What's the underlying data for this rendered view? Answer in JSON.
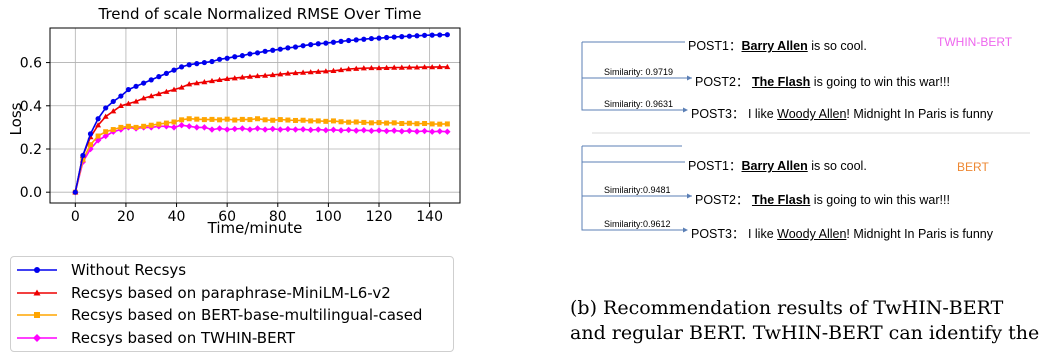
{
  "chart_data": {
    "type": "line",
    "title": "Trend of scale Normalized RMSE Over Time",
    "xlabel": "Time/minute",
    "ylabel": "Loss",
    "xlim": [
      -10,
      152
    ],
    "ylim": [
      -0.05,
      0.76
    ],
    "xticks": [
      0,
      20,
      40,
      60,
      80,
      100,
      120,
      140
    ],
    "yticks": [
      0.0,
      0.2,
      0.4,
      0.6
    ],
    "ytick_labels": [
      "0.0",
      "0.2",
      "0.4",
      "0.6"
    ],
    "grid": true,
    "legend_placement": "below",
    "series": [
      {
        "name": "Without Recsys",
        "color": "#0000ee",
        "marker": "circle",
        "x": [
          0,
          3,
          6,
          9,
          12,
          15,
          18,
          21,
          24,
          27,
          30,
          33,
          36,
          39,
          42,
          45,
          48,
          51,
          54,
          57,
          60,
          63,
          66,
          69,
          72,
          75,
          78,
          81,
          84,
          87,
          90,
          93,
          96,
          99,
          102,
          105,
          108,
          111,
          114,
          117,
          120,
          123,
          126,
          129,
          132,
          135,
          138,
          141,
          144,
          147
        ],
        "y": [
          0.0,
          0.17,
          0.27,
          0.34,
          0.39,
          0.42,
          0.445,
          0.475,
          0.49,
          0.505,
          0.52,
          0.535,
          0.55,
          0.565,
          0.58,
          0.59,
          0.595,
          0.6,
          0.605,
          0.615,
          0.62,
          0.627,
          0.632,
          0.64,
          0.645,
          0.652,
          0.657,
          0.662,
          0.668,
          0.672,
          0.678,
          0.683,
          0.687,
          0.69,
          0.694,
          0.698,
          0.702,
          0.705,
          0.708,
          0.711,
          0.713,
          0.716,
          0.718,
          0.72,
          0.722,
          0.724,
          0.726,
          0.727,
          0.728,
          0.729
        ]
      },
      {
        "name": "Recsys based on paraphrase-MiniLM-L6-v2",
        "color": "#ee0000",
        "marker": "triangle",
        "x": [
          0,
          3,
          6,
          9,
          12,
          15,
          18,
          21,
          24,
          27,
          30,
          33,
          36,
          39,
          42,
          45,
          48,
          51,
          54,
          57,
          60,
          63,
          66,
          69,
          72,
          75,
          78,
          81,
          84,
          87,
          90,
          93,
          96,
          99,
          102,
          105,
          108,
          111,
          114,
          117,
          120,
          123,
          126,
          129,
          132,
          135,
          138,
          141,
          144,
          147
        ],
        "y": [
          0.0,
          0.17,
          0.255,
          0.31,
          0.35,
          0.375,
          0.4,
          0.41,
          0.42,
          0.435,
          0.445,
          0.455,
          0.465,
          0.475,
          0.485,
          0.5,
          0.505,
          0.51,
          0.515,
          0.52,
          0.525,
          0.528,
          0.532,
          0.535,
          0.538,
          0.54,
          0.543,
          0.546,
          0.55,
          0.552,
          0.554,
          0.556,
          0.558,
          0.56,
          0.562,
          0.566,
          0.57,
          0.572,
          0.574,
          0.575,
          0.575,
          0.576,
          0.577,
          0.577,
          0.578,
          0.578,
          0.579,
          0.579,
          0.58,
          0.58
        ]
      },
      {
        "name": "Recsys based on BERT-base-multilingual-cased",
        "color": "#ffa500",
        "marker": "square",
        "x": [
          0,
          3,
          6,
          9,
          12,
          15,
          18,
          21,
          24,
          27,
          30,
          33,
          36,
          39,
          42,
          45,
          48,
          51,
          54,
          57,
          60,
          63,
          66,
          69,
          72,
          75,
          78,
          81,
          84,
          87,
          90,
          93,
          96,
          99,
          102,
          105,
          108,
          111,
          114,
          117,
          120,
          123,
          126,
          129,
          132,
          135,
          138,
          141,
          144,
          147
        ],
        "y": [
          0.0,
          0.15,
          0.22,
          0.26,
          0.28,
          0.29,
          0.3,
          0.305,
          0.3,
          0.305,
          0.31,
          0.315,
          0.32,
          0.325,
          0.335,
          0.34,
          0.338,
          0.336,
          0.337,
          0.335,
          0.338,
          0.334,
          0.337,
          0.336,
          0.34,
          0.335,
          0.333,
          0.336,
          0.334,
          0.332,
          0.333,
          0.33,
          0.33,
          0.328,
          0.33,
          0.326,
          0.324,
          0.325,
          0.323,
          0.321,
          0.322,
          0.32,
          0.321,
          0.318,
          0.319,
          0.317,
          0.318,
          0.316,
          0.315,
          0.316
        ]
      },
      {
        "name": "Recsys based on TWHIN-BERT",
        "color": "#ff00ff",
        "marker": "diamond",
        "x": [
          0,
          3,
          6,
          9,
          12,
          15,
          18,
          21,
          24,
          27,
          30,
          33,
          36,
          39,
          42,
          45,
          48,
          51,
          54,
          57,
          60,
          63,
          66,
          69,
          72,
          75,
          78,
          81,
          84,
          87,
          90,
          93,
          96,
          99,
          102,
          105,
          108,
          111,
          114,
          117,
          120,
          123,
          126,
          129,
          132,
          135,
          138,
          141,
          144,
          147
        ],
        "y": [
          0.0,
          0.14,
          0.2,
          0.24,
          0.26,
          0.28,
          0.29,
          0.3,
          0.295,
          0.3,
          0.3,
          0.305,
          0.305,
          0.3,
          0.31,
          0.305,
          0.3,
          0.3,
          0.29,
          0.295,
          0.29,
          0.293,
          0.295,
          0.29,
          0.295,
          0.29,
          0.293,
          0.29,
          0.292,
          0.29,
          0.291,
          0.288,
          0.29,
          0.287,
          0.289,
          0.286,
          0.288,
          0.285,
          0.287,
          0.284,
          0.286,
          0.283,
          0.285,
          0.282,
          0.284,
          0.281,
          0.283,
          0.28,
          0.282,
          0.28
        ]
      }
    ]
  },
  "right_panel": {
    "group1": {
      "post1_prefix": "POST1：",
      "post1_name": "Barry Allen",
      "post1_rest": " is so cool.",
      "tag": "TWHIN-BERT",
      "tag_color": "#ee66ee",
      "sim2": "Similarity: 0.9719",
      "post2_prefix": "POST2： ",
      "post2_name": "The Flash",
      "post2_rest": " is going to win this war!!!",
      "sim3": "Similarity: 0.9631",
      "post3_prefix": "POST3： I like ",
      "post3_name": "Woody Allen",
      "post3_rest": "! Midnight In Paris is funny"
    },
    "group2": {
      "post1_prefix": "POST1：",
      "post1_name": "Barry Allen",
      "post1_rest": " is so cool.",
      "tag": "BERT",
      "tag_color": "#ee8833",
      "sim2": "Similarity:0.9481",
      "post2_prefix": "POST2： ",
      "post2_name": "The Flash",
      "post2_rest": " is going to win this war!!!",
      "sim3": "Similarity:0.9612",
      "post3_prefix": "POST3： I like ",
      "post3_name": "Woody Allen",
      "post3_rest": "! Midnight In Paris is funny"
    }
  },
  "caption": {
    "line1": "(b) Recommendation results of TwHIN-BERT",
    "line2": "and regular BERT. TwHIN-BERT can identify the"
  }
}
